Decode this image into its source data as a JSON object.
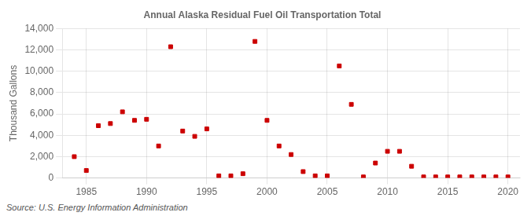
{
  "chart_data": {
    "type": "scatter",
    "title": "Annual Alaska Residual Fuel Oil Transportation Total",
    "ylabel": "Thousand Gallons",
    "annotations": [
      "Source: U.S. Energy Information Administration"
    ],
    "x": [
      1984,
      1985,
      1986,
      1987,
      1988,
      1989,
      1990,
      1991,
      1992,
      1993,
      1994,
      1995,
      1996,
      1997,
      1998,
      1999,
      2000,
      2001,
      2002,
      2003,
      2004,
      2005,
      2006,
      2007,
      2008,
      2009,
      2010,
      2011,
      2012,
      2013,
      2014,
      2015,
      2016,
      2017,
      2018,
      2019,
      2020
    ],
    "values": [
      2000,
      700,
      4900,
      5100,
      6200,
      5400,
      5500,
      3000,
      12300,
      4400,
      3900,
      4600,
      200,
      200,
      400,
      12800,
      5400,
      3000,
      2200,
      600,
      200,
      200,
      10500,
      6900,
      100,
      1400,
      2500,
      2500,
      1100,
      100,
      100,
      100,
      100,
      100,
      100,
      100,
      100
    ],
    "color": "#cc0000",
    "marker": "square",
    "xlim": [
      1983,
      2021
    ],
    "xticks": [
      1985,
      1990,
      1995,
      2000,
      2005,
      2010,
      2015,
      2020
    ],
    "ylim": [
      0,
      14000
    ],
    "yticks": [
      0,
      {
        "value": 2000,
        "label": "2,000"
      },
      {
        "value": 4000,
        "label": "4,000"
      },
      {
        "value": 6000,
        "label": "6,000"
      },
      {
        "value": 8000,
        "label": "8,000"
      },
      {
        "value": 10000,
        "label": "10,000"
      },
      {
        "value": 12000,
        "label": "12,000"
      },
      {
        "value": 14000,
        "label": "14,000"
      }
    ],
    "grid": true
  }
}
